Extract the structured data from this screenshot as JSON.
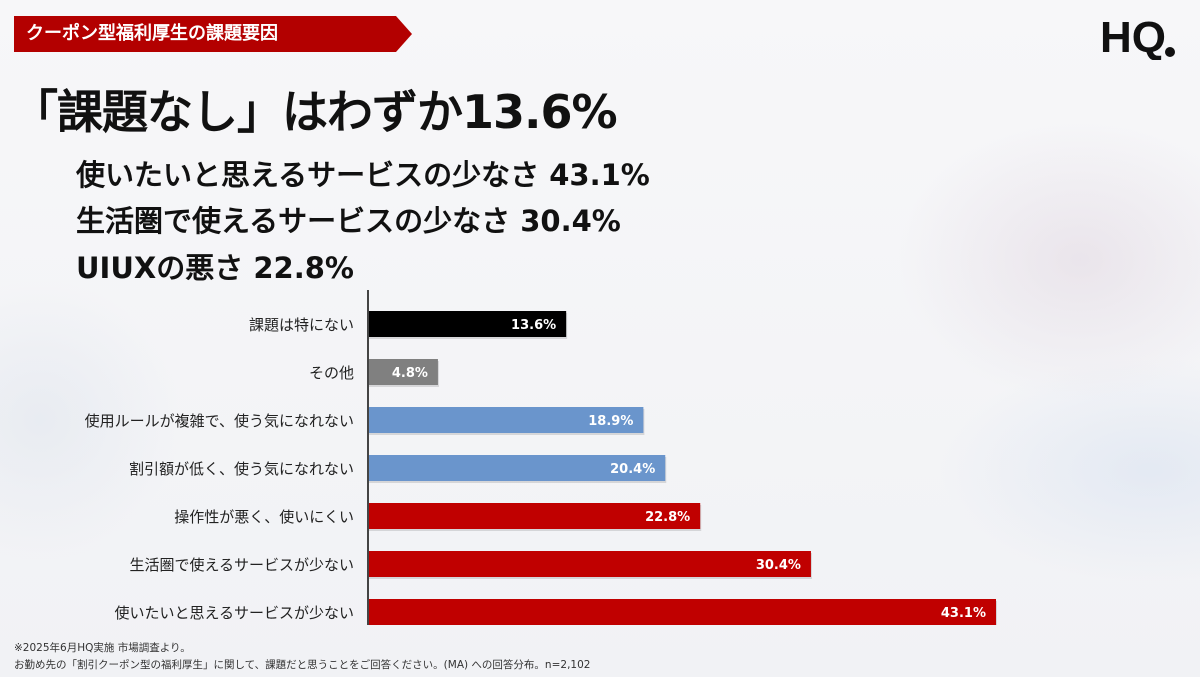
{
  "header": {
    "tag": "クーポン型福利厚生の課題要因",
    "logo_text": "HQ"
  },
  "headline": "「課題なし」はわずか13.6%",
  "sub_points": [
    "使いたいと思えるサービスの少なさ 43.1%",
    "生活圏で使えるサービスの少なさ 30.4%",
    "UIUXの悪さ 22.8%"
  ],
  "chart_data": {
    "type": "bar",
    "orientation": "horizontal",
    "categories": [
      "課題は特にない",
      "その他",
      "使用ルールが複雑で、使う気になれない",
      "割引額が低く、使う気になれない",
      "操作性が悪く、使いにくい",
      "生活圏で使えるサービスが少ない",
      "使いたいと思えるサービスが少ない"
    ],
    "values": [
      13.6,
      4.8,
      18.9,
      20.4,
      22.8,
      30.4,
      43.1
    ],
    "data_labels": [
      "13.6%",
      "4.8%",
      "18.9%",
      "20.4%",
      "22.8%",
      "30.4%",
      "43.1%"
    ],
    "bar_colors": [
      "#000000",
      "#808080",
      "#6a95cc",
      "#6a95cc",
      "#c00000",
      "#c00000",
      "#c00000"
    ],
    "xlim": [
      0,
      50
    ],
    "grid": false,
    "legend": "none"
  },
  "footnotes": [
    "※2025年6月HQ実施 市場調査より。",
    "お勤め先の「割引クーポン型の福利厚生」に関して、課題だと思うことをご回答ください。(MA) への回答分布。n=2,102"
  ],
  "colors": {
    "accent": "#b30000",
    "text": "#111111"
  }
}
